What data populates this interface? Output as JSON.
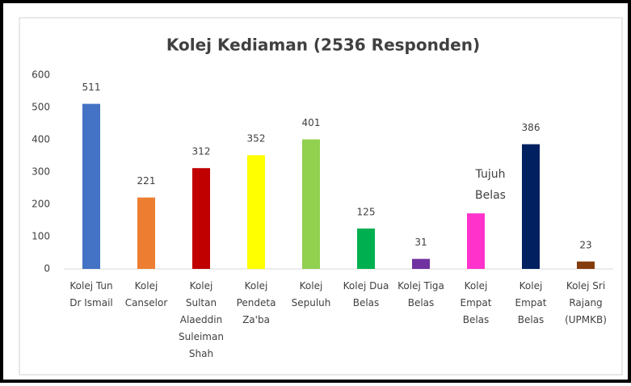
{
  "chart_data": {
    "type": "bar",
    "title": "Kolej Kediaman (2536 Responden)",
    "categories": [
      "Kolej Tun\nDr Ismail",
      "Kolej\nCanselor",
      "Kolej\nSultan\nAlaeddin\nSuleiman\nShah",
      "Kolej\nPendeta\nZa'ba",
      "Kolej\nSepuluh",
      "Kolej Dua\nBelas",
      "Kolej Tiga\nBelas",
      "Kolej\nEmpat\nBelas",
      "Kolej\nEmpat\nBelas",
      "Kolej Sri\nRajang\n(UPMKB)"
    ],
    "values": [
      511,
      221,
      312,
      352,
      401,
      125,
      31,
      172,
      386,
      23
    ],
    "value_labels": [
      "511",
      "221",
      "312",
      "352",
      "401",
      "125",
      "31",
      null,
      "386",
      "23"
    ],
    "colors": [
      "#4472c4",
      "#ed7d31",
      "#c00000",
      "#ffff00",
      "#92d050",
      "#00b050",
      "#7030a0",
      "#ff33cc",
      "#002060",
      "#843c0c"
    ],
    "annotation": "Tujuh\nBelas",
    "ylim": [
      0,
      600
    ],
    "yticks": [
      0,
      100,
      200,
      300,
      400,
      500,
      600
    ],
    "grid": false
  }
}
